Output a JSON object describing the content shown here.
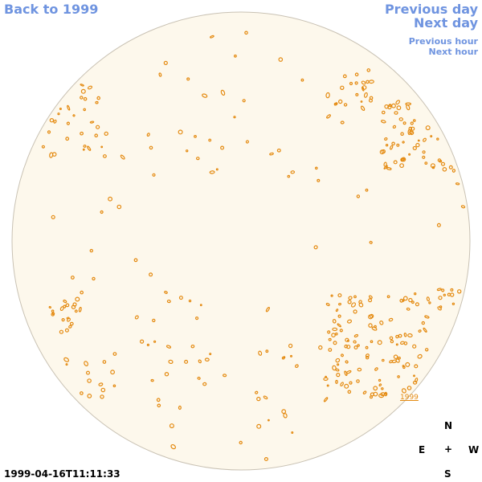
{
  "nav": {
    "back_label": "Back to 1999",
    "prev_day_label": "Previous day",
    "next_day_label": "Next day",
    "prev_hour_label": "Previous hour",
    "next_hour_label": "Next hour"
  },
  "timestamp": "1999-04-16T11:11:33",
  "year_tag": "1999",
  "compass": {
    "north": "N",
    "east": "E",
    "center": "+",
    "west": "W",
    "south": "S"
  },
  "colors": {
    "link": "#6f94e0",
    "disk_fill": "#fdf8ec",
    "disk_edge": "#c9c2b4",
    "feature": "#e48a10"
  }
}
